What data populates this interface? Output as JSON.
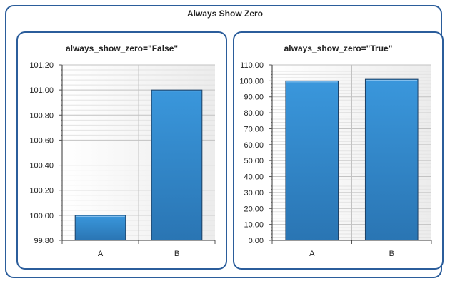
{
  "title": "Always Show Zero",
  "chart_data": [
    {
      "type": "bar",
      "title": "always_show_zero=\"False\"",
      "categories": [
        "A",
        "B"
      ],
      "values": [
        100.0,
        101.0
      ],
      "ylim": [
        99.8,
        101.2
      ],
      "yticks": [
        "99.80",
        "100.00",
        "100.20",
        "100.40",
        "100.60",
        "100.80",
        "101.00",
        "101.20"
      ],
      "grid": true,
      "bar_color": "#2e86c9"
    },
    {
      "type": "bar",
      "title": "always_show_zero=\"True\"",
      "categories": [
        "A",
        "B"
      ],
      "values": [
        100.0,
        101.0
      ],
      "ylim": [
        0,
        110
      ],
      "yticks": [
        "0.00",
        "10.00",
        "20.00",
        "30.00",
        "40.00",
        "50.00",
        "60.00",
        "70.00",
        "80.00",
        "90.00",
        "100.00",
        "110.00"
      ],
      "grid": true,
      "bar_color": "#2e86c9"
    }
  ]
}
